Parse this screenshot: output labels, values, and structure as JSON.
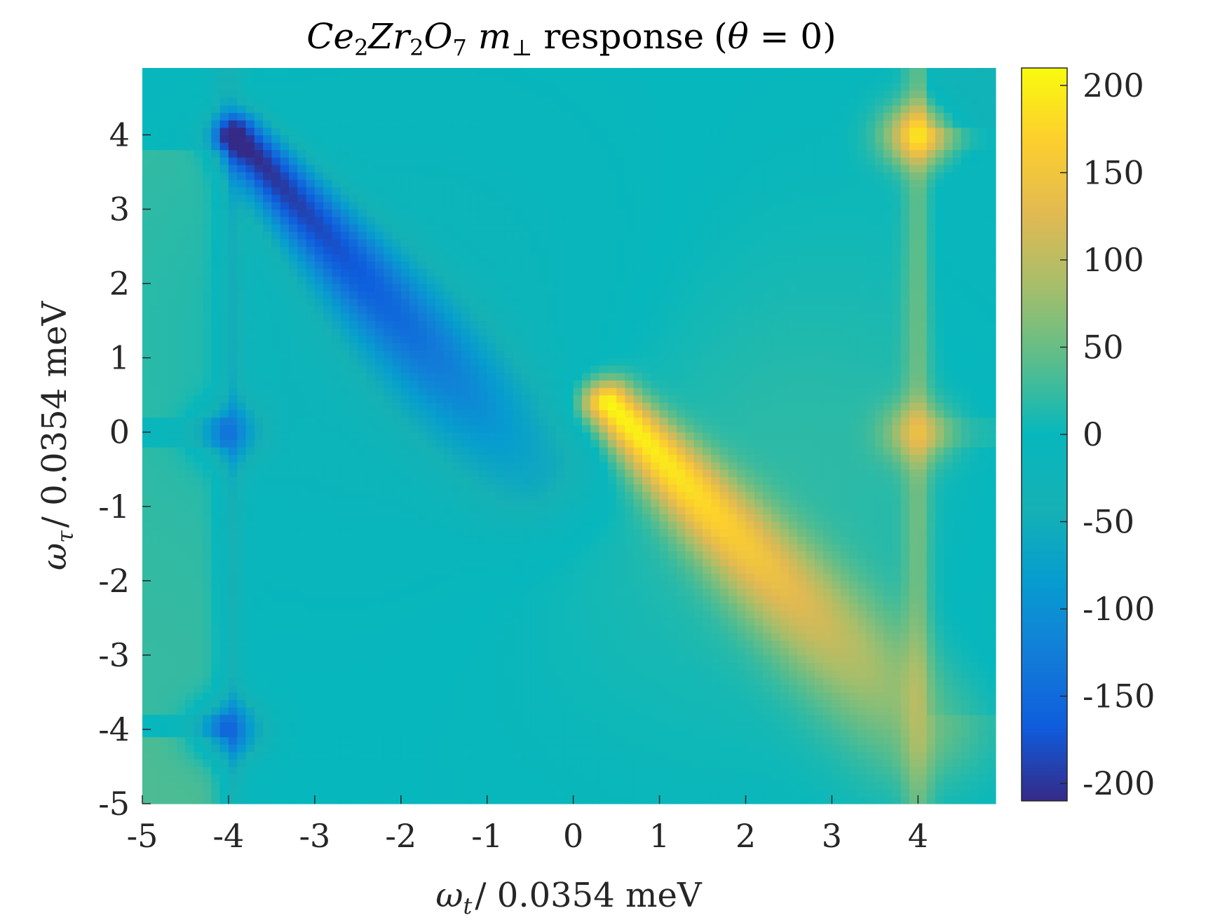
{
  "chart_data": {
    "type": "heatmap",
    "title": {
      "compound_parts": [
        {
          "text": "Ce",
          "sub": "2"
        },
        {
          "text": "Zr",
          "sub": "2"
        },
        {
          "text": "O",
          "sub": "7"
        }
      ],
      "m_symbol": "m",
      "m_sub": "⊥",
      "word": "response",
      "paren_open": "(",
      "theta": "θ",
      "eq": " = 0",
      "paren_close": ")"
    },
    "xlabel": {
      "symbol": "ω",
      "sub": "t",
      "rest": "/ 0.0354 meV"
    },
    "ylabel": {
      "symbol": "ω",
      "sub": "τ",
      "rest": "/ 0.0354 meV"
    },
    "xlim": [
      -5,
      4.9
    ],
    "ylim": [
      -5,
      4.9
    ],
    "x_ticks": [
      -5,
      -4,
      -3,
      -2,
      -1,
      0,
      1,
      2,
      3,
      4
    ],
    "x_tick_labels": [
      "-5",
      "-4",
      "-3",
      "-2",
      "-1",
      "0",
      "1",
      "2",
      "3",
      "4"
    ],
    "y_ticks": [
      4,
      3,
      2,
      1,
      0,
      -1,
      -2,
      -3,
      -4,
      -5
    ],
    "y_tick_labels": [
      "4",
      "3",
      "2",
      "1",
      "0",
      "-1",
      "-2",
      "-3",
      "-4",
      "-5"
    ],
    "grid": false,
    "colormap": "parula",
    "colorbar": {
      "clim": [
        -210,
        210
      ],
      "ticks": [
        200,
        150,
        100,
        50,
        0,
        -50,
        -100,
        -150,
        -200
      ],
      "tick_labels": [
        "200",
        "150",
        "100",
        "50",
        "0",
        "-50",
        "-100",
        "-150",
        "-200"
      ],
      "location": "right"
    },
    "features": [
      {
        "kind": "ridge",
        "from": [
          -3.9,
          4.0
        ],
        "to": [
          -0.5,
          -0.5
        ],
        "peak": -210,
        "end_value": -60
      },
      {
        "kind": "ridge",
        "from": [
          0.4,
          0.4
        ],
        "to": [
          4.0,
          -4.0
        ],
        "peak": 210,
        "end_value": 50
      },
      {
        "kind": "spot",
        "x": 4.0,
        "y": 4.0,
        "value": 150
      },
      {
        "kind": "spot",
        "x": 4.0,
        "y": 0.0,
        "value": 90
      },
      {
        "kind": "spot",
        "x": -4.0,
        "y": 0.0,
        "value": -90
      },
      {
        "kind": "spot",
        "x": -4.0,
        "y": -4.0,
        "value": -120
      },
      {
        "kind": "band",
        "axis": "x",
        "at": -4.0,
        "value": -40
      },
      {
        "kind": "band",
        "axis": "x",
        "at": 4.0,
        "value": 40
      },
      {
        "kind": "region",
        "x_range": [
          -5,
          -4
        ],
        "y_range": [
          0.2,
          3.8
        ],
        "value": 25
      },
      {
        "kind": "region",
        "x_range": [
          -5,
          -4
        ],
        "y_range": [
          -3.8,
          -0.2
        ],
        "value": 25
      },
      {
        "kind": "region",
        "x_range": [
          -5,
          -4
        ],
        "y_range": [
          -5,
          -4.1
        ],
        "value": 35
      },
      {
        "kind": "region",
        "x_range": [
          4.1,
          4.9
        ],
        "y_range": [
          0.2,
          3.8
        ],
        "value": -10
      },
      {
        "kind": "region",
        "x_range": [
          4.1,
          4.9
        ],
        "y_range": [
          4.1,
          4.9
        ],
        "value": -30
      },
      {
        "kind": "region",
        "x_range": [
          4.1,
          4.9
        ],
        "y_range": [
          -3.8,
          -0.2
        ],
        "value": -10
      }
    ]
  }
}
